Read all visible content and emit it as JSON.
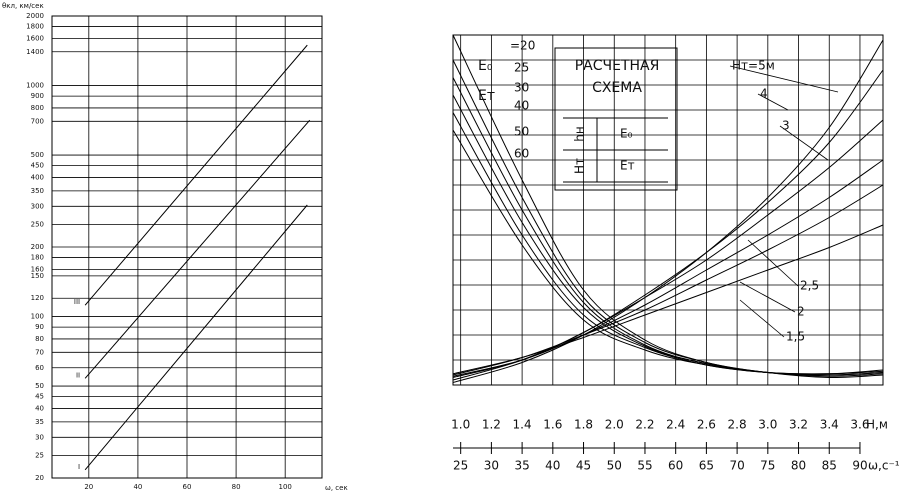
{
  "chart_data": [
    {
      "type": "line",
      "y_label": "θкл, км/сек",
      "x_label": "ω, сек",
      "log_y": true,
      "color": "#000000",
      "xlim": [
        5,
        115
      ],
      "xticks": [
        20,
        40,
        60,
        80,
        100
      ],
      "ylim": [
        20,
        2000
      ],
      "yticks": [
        20,
        25,
        30,
        35,
        40,
        45,
        50,
        60,
        70,
        80,
        90,
        100,
        120,
        150,
        160,
        180,
        200,
        250,
        300,
        350,
        400,
        450,
        500,
        700,
        800,
        900,
        1000,
        1400,
        1600,
        1800,
        2000
      ],
      "series": [
        {
          "name": "I",
          "x": [
            18.5,
            109
          ],
          "values": [
            21.7,
            304
          ]
        },
        {
          "name": "II",
          "x": [
            18.5,
            110
          ],
          "values": [
            54,
            708
          ]
        },
        {
          "name": "III",
          "x": [
            18.5,
            109
          ],
          "values": [
            112,
            1496
          ]
        }
      ]
    },
    {
      "type": "line",
      "x_label": "Н,м",
      "x2_label": "ω,с⁻¹",
      "color": "#000000",
      "annotations": [
        "E₀",
        "Eт",
        "РАСЧЕТНАЯ",
        "СХЕМА",
        "hн",
        "E₀",
        "Hт",
        "Eт"
      ],
      "xlim": [
        0.95,
        3.75
      ],
      "xticks": [
        {
          "value": 1,
          "label": "1.0"
        },
        {
          "value": 1.2,
          "label": "1.2"
        },
        {
          "value": 1.4,
          "label": "1.4"
        },
        {
          "value": 1.6,
          "label": "1.6"
        },
        {
          "value": 1.8,
          "label": "1.8"
        },
        {
          "value": 2,
          "label": "2.0"
        },
        {
          "value": 2.2,
          "label": "2.2"
        },
        {
          "value": 2.4,
          "label": "2.4"
        },
        {
          "value": 2.6,
          "label": "2.6"
        },
        {
          "value": 2.8,
          "label": "2.8"
        },
        {
          "value": 3,
          "label": "3.0"
        },
        {
          "value": 3.2,
          "label": "3.2"
        },
        {
          "value": 3.4,
          "label": "3.4"
        },
        {
          "value": 3.6,
          "label": "3.6"
        }
      ],
      "x2lim": [
        23.75,
        93.75
      ],
      "x2ticks": [
        25,
        30,
        35,
        40,
        45,
        50,
        55,
        60,
        65,
        70,
        75,
        80,
        85,
        90
      ],
      "ylim": [
        0,
        14
      ],
      "series": [
        {
          "name": "=20",
          "x": [
            0.95,
            1.4,
            1.8,
            2.2,
            2.6,
            3.0,
            3.4,
            3.75
          ],
          "values": [
            14,
            8.2,
            3.8,
            1.8,
            0.9,
            0.5,
            0.3,
            0.4
          ]
        },
        {
          "name": "25",
          "x": [
            0.95,
            1.4,
            1.8,
            2.2,
            2.6,
            3.0,
            3.4,
            3.75
          ],
          "values": [
            13,
            7.5,
            3.5,
            1.7,
            0.9,
            0.5,
            0.35,
            0.45
          ]
        },
        {
          "name": "30",
          "x": [
            0.95,
            1.4,
            1.8,
            2.2,
            2.6,
            3.0,
            3.4,
            3.75
          ],
          "values": [
            12.3,
            7.0,
            3.3,
            1.6,
            0.85,
            0.5,
            0.4,
            0.5
          ]
        },
        {
          "name": "40",
          "x": [
            0.95,
            1.4,
            1.8,
            2.2,
            2.6,
            3.0,
            3.4,
            3.75
          ],
          "values": [
            11.6,
            6.5,
            3.1,
            1.55,
            0.85,
            0.5,
            0.4,
            0.5
          ]
        },
        {
          "name": "50",
          "x": [
            0.95,
            1.4,
            1.8,
            2.2,
            2.6,
            3.0,
            3.4,
            3.75
          ],
          "values": [
            10.9,
            6.0,
            2.8,
            1.5,
            0.8,
            0.5,
            0.45,
            0.55
          ]
        },
        {
          "name": "60",
          "x": [
            0.95,
            1.4,
            1.8,
            2.2,
            2.6,
            3.0,
            3.4,
            3.75
          ],
          "values": [
            10.2,
            5.6,
            2.6,
            1.4,
            0.8,
            0.5,
            0.45,
            0.6
          ]
        },
        {
          "name": "Hт=5м",
          "x": [
            0.95,
            1.4,
            1.8,
            2.2,
            2.6,
            3.0,
            3.4,
            3.75
          ],
          "values": [
            0.1,
            0.9,
            2.0,
            3.5,
            5.3,
            7.5,
            10.3,
            13.8
          ]
        },
        {
          "name": "4",
          "x": [
            0.95,
            1.4,
            1.8,
            2.2,
            2.6,
            3.0,
            3.4,
            3.75
          ],
          "values": [
            0.2,
            1.0,
            2.1,
            3.6,
            5.3,
            7.3,
            9.7,
            12.6
          ]
        },
        {
          "name": "3",
          "x": [
            0.95,
            1.4,
            1.8,
            2.2,
            2.6,
            3.0,
            3.4,
            3.75
          ],
          "values": [
            0.3,
            1.0,
            2.1,
            3.5,
            5.0,
            6.8,
            8.7,
            10.6
          ]
        },
        {
          "name": "2,5",
          "x": [
            0.95,
            1.4,
            1.8,
            2.2,
            2.6,
            3.0,
            3.4,
            3.75
          ],
          "values": [
            0.35,
            1.0,
            2.0,
            3.2,
            4.6,
            6.0,
            7.5,
            9.0
          ]
        },
        {
          "name": "2",
          "x": [
            0.95,
            1.4,
            1.8,
            2.2,
            2.6,
            3.0,
            3.4,
            3.75
          ],
          "values": [
            0.4,
            1.1,
            2.0,
            3.0,
            4.2,
            5.4,
            6.7,
            8.0
          ]
        },
        {
          "name": "1,5",
          "x": [
            0.95,
            1.4,
            1.8,
            2.2,
            2.6,
            3.0,
            3.4,
            3.75
          ],
          "values": [
            0.45,
            1.1,
            1.9,
            2.8,
            3.7,
            4.6,
            5.5,
            6.4
          ]
        }
      ]
    }
  ]
}
